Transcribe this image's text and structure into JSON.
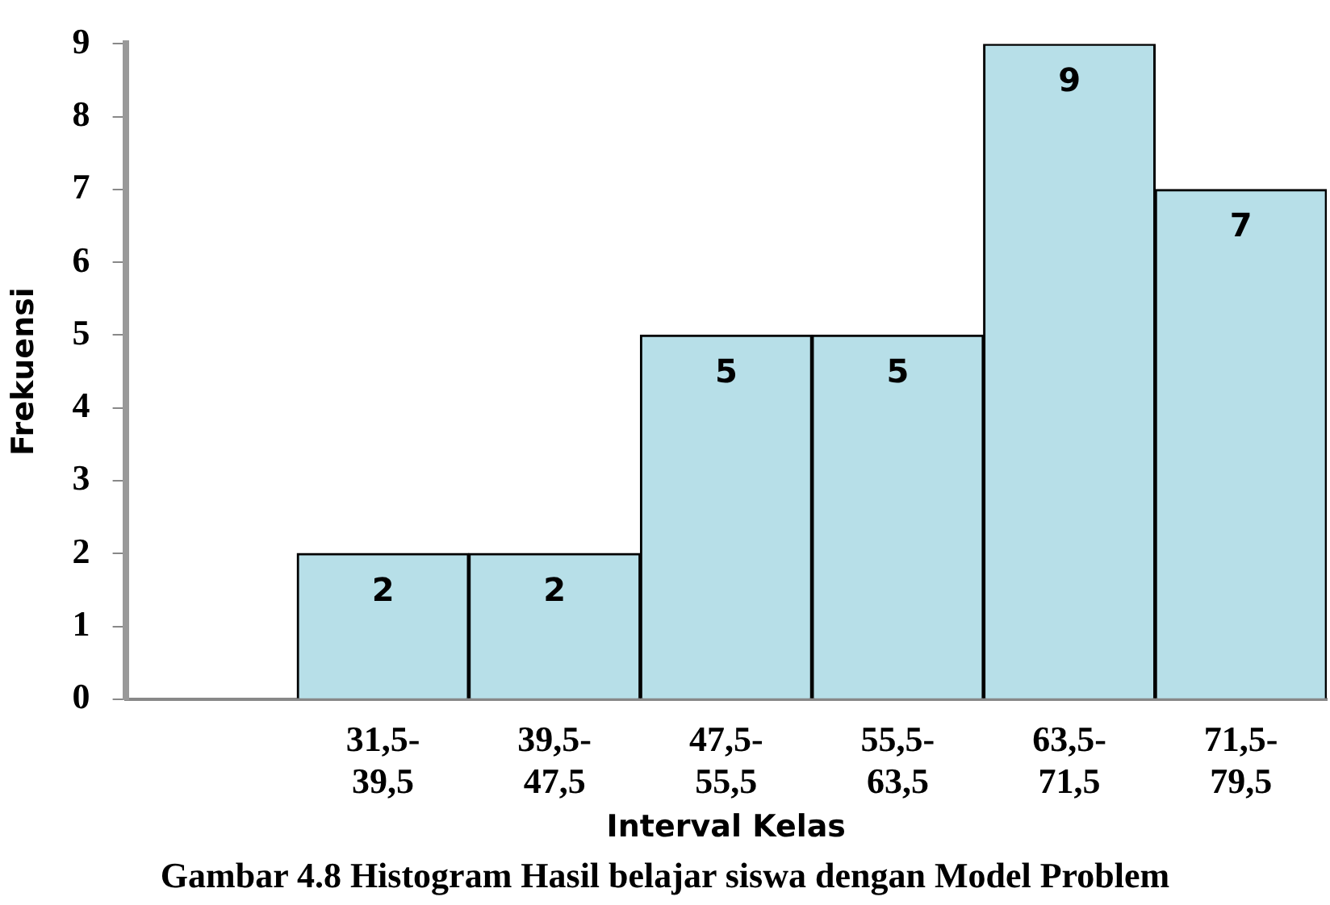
{
  "chart_data": {
    "type": "bar",
    "xlabel": "Interval Kelas",
    "ylabel": "Frekuensi",
    "categories": [
      null,
      "31,5-39,5",
      "39,5-47,5",
      "47,5-55,5",
      "55,5-63,5",
      "63,5-71,5",
      "71,5-79,5"
    ],
    "values": [
      0,
      2,
      2,
      5,
      5,
      9,
      7
    ],
    "value_labels": [
      null,
      "2",
      "2",
      "5",
      "5",
      "9",
      "7"
    ],
    "color": "#b7dfe8",
    "ylim": [
      0,
      9
    ],
    "yticks": [
      0,
      1,
      2,
      3,
      4,
      5,
      6,
      7,
      8,
      9
    ],
    "grid": false,
    "legend": false,
    "annotations": [
      "Gambar 4.8 Histogram Hasil belajar siswa dengan Model Problem"
    ]
  }
}
